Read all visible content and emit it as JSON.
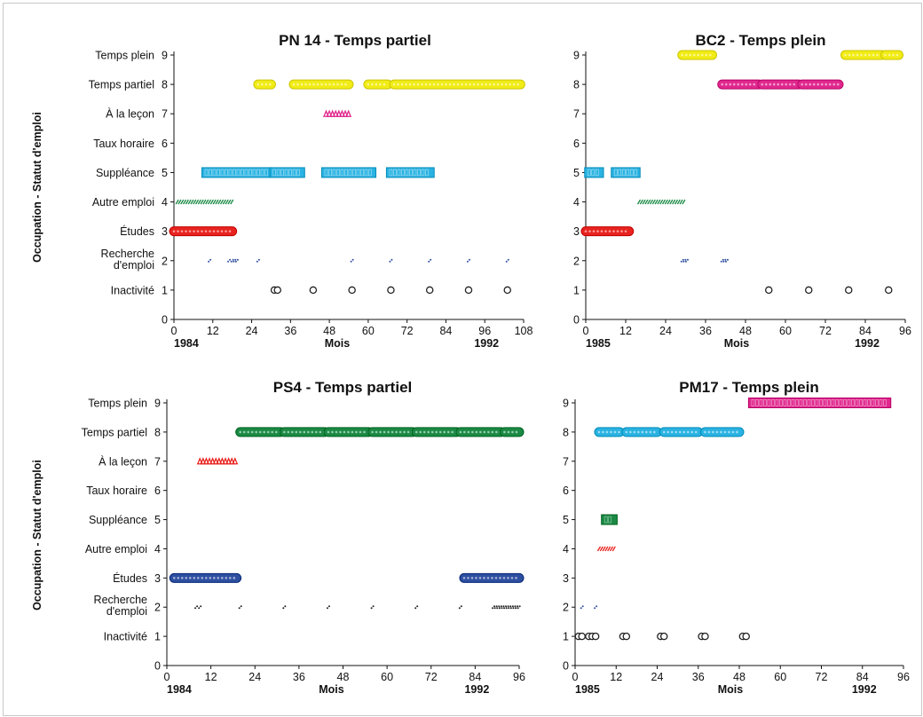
{
  "y_axis_label": "Occupation - Statut d'emploi",
  "y_categories": [
    "Inactivité",
    "Recherche|d'emploi",
    "Études",
    "Autre emploi",
    "Suppléance",
    "Taux horaire",
    "À la leçon",
    "Temps partiel",
    "Temps plein"
  ],
  "colors": {
    "blue": "#2e4fa0",
    "red": "#e8231f",
    "green": "#1a8a45",
    "cyan": "#2ab3e2",
    "magenta": "#e0288e",
    "yellow": "#f2ec16",
    "black": "#222222"
  },
  "chart_data": [
    {
      "type": "scatter",
      "title": "PN 14 - Temps partiel",
      "xlabel": "Mois",
      "xlim": [
        0,
        108
      ],
      "xticks": [
        0,
        12,
        24,
        36,
        48,
        60,
        72,
        84,
        96,
        108
      ],
      "ylim": [
        0,
        9
      ],
      "year_start": "1984",
      "year_end": "1992",
      "show_category_labels": true,
      "segments": [
        {
          "y": 8,
          "x0": 26,
          "x1": 30,
          "color": "yellow",
          "style": "dots"
        },
        {
          "y": 8,
          "x0": 37,
          "x1": 54,
          "color": "yellow",
          "style": "dots"
        },
        {
          "y": 8,
          "x0": 60,
          "x1": 66,
          "color": "yellow",
          "style": "dots"
        },
        {
          "y": 8,
          "x0": 68,
          "x1": 107,
          "color": "yellow",
          "style": "dots"
        },
        {
          "y": 7,
          "x0": 47,
          "x1": 54,
          "color": "magenta",
          "style": "triangles"
        },
        {
          "y": 5,
          "x0": 10,
          "x1": 29,
          "color": "cyan",
          "style": "squares"
        },
        {
          "y": 5,
          "x0": 31,
          "x1": 39,
          "color": "cyan",
          "style": "squares"
        },
        {
          "y": 5,
          "x0": 47,
          "x1": 61,
          "color": "cyan",
          "style": "squares"
        },
        {
          "y": 5,
          "x0": 67,
          "x1": 79,
          "color": "cyan",
          "style": "squares"
        },
        {
          "y": 4,
          "x0": 1,
          "x1": 18,
          "color": "green",
          "style": "hatch"
        },
        {
          "y": 3,
          "x0": 0,
          "x1": 18,
          "color": "red",
          "style": "dots"
        },
        {
          "y": 2,
          "x0": 18,
          "x1": 20,
          "color": "blue",
          "style": "small"
        }
      ],
      "points": [
        {
          "y": 2,
          "x": 11,
          "color": "blue",
          "style": "small"
        },
        {
          "y": 2,
          "x": 17,
          "color": "blue",
          "style": "small"
        },
        {
          "y": 2,
          "x": 26,
          "color": "blue",
          "style": "small"
        },
        {
          "y": 2,
          "x": 55,
          "color": "blue",
          "style": "small"
        },
        {
          "y": 2,
          "x": 67,
          "color": "blue",
          "style": "small"
        },
        {
          "y": 2,
          "x": 79,
          "color": "blue",
          "style": "small"
        },
        {
          "y": 2,
          "x": 91,
          "color": "blue",
          "style": "small"
        },
        {
          "y": 2,
          "x": 103,
          "color": "blue",
          "style": "small"
        },
        {
          "y": 1,
          "x": 31,
          "color": "black",
          "style": "circle"
        },
        {
          "y": 1,
          "x": 32,
          "color": "black",
          "style": "circle"
        },
        {
          "y": 1,
          "x": 43,
          "color": "black",
          "style": "circle"
        },
        {
          "y": 1,
          "x": 55,
          "color": "black",
          "style": "circle"
        },
        {
          "y": 1,
          "x": 67,
          "color": "black",
          "style": "circle"
        },
        {
          "y": 1,
          "x": 79,
          "color": "black",
          "style": "circle"
        },
        {
          "y": 1,
          "x": 91,
          "color": "black",
          "style": "circle"
        },
        {
          "y": 1,
          "x": 103,
          "color": "black",
          "style": "circle"
        }
      ]
    },
    {
      "type": "scatter",
      "title": "BC2 - Temps plein",
      "xlabel": "Mois",
      "xlim": [
        0,
        96
      ],
      "xticks": [
        0,
        12,
        24,
        36,
        48,
        60,
        72,
        84,
        96
      ],
      "ylim": [
        0,
        9
      ],
      "year_start": "1985",
      "year_end": "1992",
      "show_category_labels": false,
      "segments": [
        {
          "y": 9,
          "x0": 29,
          "x1": 38,
          "color": "yellow",
          "style": "dots"
        },
        {
          "y": 9,
          "x0": 78,
          "x1": 89,
          "color": "yellow",
          "style": "dots"
        },
        {
          "y": 9,
          "x0": 90,
          "x1": 94,
          "color": "yellow",
          "style": "dots"
        },
        {
          "y": 8,
          "x0": 41,
          "x1": 52,
          "color": "magenta",
          "style": "dots"
        },
        {
          "y": 8,
          "x0": 53,
          "x1": 64,
          "color": "magenta",
          "style": "dots"
        },
        {
          "y": 8,
          "x0": 65,
          "x1": 76,
          "color": "magenta",
          "style": "dots"
        },
        {
          "y": 5,
          "x0": 1,
          "x1": 4,
          "color": "cyan",
          "style": "squares"
        },
        {
          "y": 5,
          "x0": 9,
          "x1": 15,
          "color": "cyan",
          "style": "squares"
        },
        {
          "y": 4,
          "x0": 16,
          "x1": 30,
          "color": "green",
          "style": "hatch"
        },
        {
          "y": 3,
          "x0": 0,
          "x1": 13,
          "color": "red",
          "style": "dots"
        },
        {
          "y": 2,
          "x0": 29,
          "x1": 31,
          "color": "blue",
          "style": "small"
        },
        {
          "y": 2,
          "x0": 41,
          "x1": 43,
          "color": "blue",
          "style": "small"
        }
      ],
      "points": [
        {
          "y": 1,
          "x": 55,
          "color": "black",
          "style": "circle"
        },
        {
          "y": 1,
          "x": 67,
          "color": "black",
          "style": "circle"
        },
        {
          "y": 1,
          "x": 79,
          "color": "black",
          "style": "circle"
        },
        {
          "y": 1,
          "x": 91,
          "color": "black",
          "style": "circle"
        }
      ]
    },
    {
      "type": "scatter",
      "title": "PS4 - Temps partiel",
      "xlabel": "Mois",
      "xlim": [
        0,
        96
      ],
      "xticks": [
        0,
        12,
        24,
        36,
        48,
        60,
        72,
        84,
        96
      ],
      "ylim": [
        0,
        9
      ],
      "year_start": "1984",
      "year_end": "1992",
      "show_category_labels": true,
      "segments": [
        {
          "y": 8,
          "x0": 20,
          "x1": 31,
          "color": "green",
          "style": "dots"
        },
        {
          "y": 8,
          "x0": 32,
          "x1": 43,
          "color": "green",
          "style": "dots"
        },
        {
          "y": 8,
          "x0": 44,
          "x1": 55,
          "color": "green",
          "style": "dots"
        },
        {
          "y": 8,
          "x0": 56,
          "x1": 67,
          "color": "green",
          "style": "dots"
        },
        {
          "y": 8,
          "x0": 68,
          "x1": 79,
          "color": "green",
          "style": "dots"
        },
        {
          "y": 8,
          "x0": 80,
          "x1": 91,
          "color": "green",
          "style": "dots"
        },
        {
          "y": 8,
          "x0": 92,
          "x1": 96,
          "color": "green",
          "style": "dots"
        },
        {
          "y": 7,
          "x0": 9,
          "x1": 19,
          "color": "red",
          "style": "triangles"
        },
        {
          "y": 3,
          "x0": 2,
          "x1": 19,
          "color": "blue",
          "style": "dots"
        },
        {
          "y": 3,
          "x0": 81,
          "x1": 96,
          "color": "blue",
          "style": "dots"
        },
        {
          "y": 2,
          "x0": 89,
          "x1": 96,
          "color": "black",
          "style": "small"
        }
      ],
      "points": [
        {
          "y": 2,
          "x": 8,
          "color": "black",
          "style": "small"
        },
        {
          "y": 2,
          "x": 9,
          "color": "black",
          "style": "small"
        },
        {
          "y": 2,
          "x": 20,
          "color": "black",
          "style": "small"
        },
        {
          "y": 2,
          "x": 32,
          "color": "black",
          "style": "small"
        },
        {
          "y": 2,
          "x": 44,
          "color": "black",
          "style": "small"
        },
        {
          "y": 2,
          "x": 56,
          "color": "black",
          "style": "small"
        },
        {
          "y": 2,
          "x": 68,
          "color": "black",
          "style": "small"
        },
        {
          "y": 2,
          "x": 80,
          "color": "black",
          "style": "small"
        }
      ]
    },
    {
      "type": "scatter",
      "title": "PM17 - Temps plein",
      "xlabel": "Mois",
      "xlim": [
        0,
        96
      ],
      "xticks": [
        0,
        12,
        24,
        36,
        48,
        60,
        72,
        84,
        96
      ],
      "ylim": [
        0,
        9
      ],
      "year_start": "1985",
      "year_end": "1992",
      "show_category_labels": false,
      "segments": [
        {
          "y": 9,
          "x0": 52,
          "x1": 91,
          "color": "magenta",
          "style": "squaresFill"
        },
        {
          "y": 8,
          "x0": 7,
          "x1": 13,
          "color": "cyan",
          "style": "dots"
        },
        {
          "y": 8,
          "x0": 15,
          "x1": 24,
          "color": "cyan",
          "style": "dots"
        },
        {
          "y": 8,
          "x0": 26,
          "x1": 36,
          "color": "cyan",
          "style": "dots"
        },
        {
          "y": 8,
          "x0": 38,
          "x1": 48,
          "color": "cyan",
          "style": "dots"
        },
        {
          "y": 5,
          "x0": 9,
          "x1": 11,
          "color": "green",
          "style": "squaresFill"
        },
        {
          "y": 4,
          "x0": 7,
          "x1": 12,
          "color": "red",
          "style": "hatch"
        }
      ],
      "points": [
        {
          "y": 2,
          "x": 2,
          "color": "blue",
          "style": "small"
        },
        {
          "y": 2,
          "x": 6,
          "color": "blue",
          "style": "small"
        },
        {
          "y": 1,
          "x": 1,
          "color": "black",
          "style": "circle"
        },
        {
          "y": 1,
          "x": 2,
          "color": "black",
          "style": "circle"
        },
        {
          "y": 1,
          "x": 4,
          "color": "black",
          "style": "circle"
        },
        {
          "y": 1,
          "x": 5,
          "color": "black",
          "style": "circle"
        },
        {
          "y": 1,
          "x": 6,
          "color": "black",
          "style": "circle"
        },
        {
          "y": 1,
          "x": 14,
          "color": "black",
          "style": "circle"
        },
        {
          "y": 1,
          "x": 15,
          "color": "black",
          "style": "circle"
        },
        {
          "y": 1,
          "x": 25,
          "color": "black",
          "style": "circle"
        },
        {
          "y": 1,
          "x": 26,
          "color": "black",
          "style": "circle"
        },
        {
          "y": 1,
          "x": 37,
          "color": "black",
          "style": "circle"
        },
        {
          "y": 1,
          "x": 38,
          "color": "black",
          "style": "circle"
        },
        {
          "y": 1,
          "x": 49,
          "color": "black",
          "style": "circle"
        },
        {
          "y": 1,
          "x": 50,
          "color": "black",
          "style": "circle"
        }
      ]
    }
  ]
}
